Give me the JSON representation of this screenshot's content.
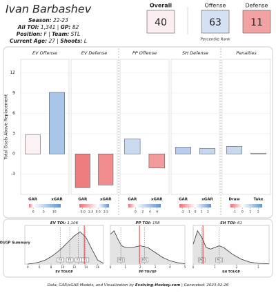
{
  "header": {
    "name": "Ivan Barbashev",
    "info": [
      [
        {
          "label": "Season:",
          "value": "22-23"
        }
      ],
      [
        {
          "label": "All TOI:",
          "value": "1,341"
        },
        {
          "label": "GP:",
          "value": "82"
        }
      ],
      [
        {
          "label": "Position:",
          "value": "F"
        },
        {
          "label": "Team:",
          "value": "STL"
        }
      ],
      [
        {
          "label": "Current Age:",
          "value": "27"
        },
        {
          "label": "Shoots:",
          "value": "L"
        }
      ]
    ],
    "percentiles": [
      {
        "label": "Overall",
        "value": 40,
        "color": "#fbeef0"
      },
      {
        "label": "Offense",
        "value": 63,
        "color": "#d3e1f2"
      },
      {
        "label": "Defense",
        "value": 11,
        "color": "#f3a2a4"
      }
    ],
    "percentile_note": "Percentile Rank"
  },
  "chart_data": {
    "type": "bar",
    "y_label": "Total Goals Above Replacement",
    "ylim": [
      -6,
      14
    ],
    "yticks": [
      -3,
      0,
      3,
      6,
      9,
      12
    ],
    "grid": true,
    "panels": [
      {
        "title": "EV Offense",
        "categories": [
          "GAR",
          "xGAR"
        ],
        "values": [
          2.8,
          9.1
        ],
        "colors": [
          "#fdf2f3",
          "#a9c5e7"
        ],
        "colorbar": {
          "lim": [
            -2,
            13
          ],
          "ticks": [
            0,
            5,
            10
          ]
        }
      },
      {
        "title": "EV Defense",
        "categories": [
          "GAR",
          "xGAR"
        ],
        "values": [
          -5.0,
          -4.6
        ],
        "colors": [
          "#ee7d80",
          "#f08b8e"
        ],
        "colorbar": {
          "lim": [
            -6,
            3.5
          ],
          "ticks": [
            {
              "value": -5,
              "label": "-5.0"
            },
            -2.5,
            {
              "value": 0,
              "label": "0.0"
            },
            2.5
          ]
        }
      },
      {
        "title": "PP Offense",
        "categories": [
          "GAR",
          "xGAR"
        ],
        "values": [
          2.2,
          -2.1
        ],
        "colors": [
          "#c9daf0",
          "#f29a9c"
        ],
        "colorbar": {
          "lim": [
            -2,
            7
          ],
          "ticks": [
            0,
            2,
            4,
            6
          ]
        }
      },
      {
        "title": "SH Defense",
        "categories": [
          "GAR",
          "xGAR"
        ],
        "values": [
          1.0,
          0.8
        ],
        "colors": [
          "#b6cdeb",
          "#c4d7ef"
        ],
        "colorbar": {
          "lim": [
            -2.5,
            2.5
          ],
          "ticks": [
            -2,
            -1,
            0,
            1,
            2
          ]
        }
      },
      {
        "title": "Penalties",
        "categories": [
          "Draw",
          "Take"
        ],
        "values": [
          1.1,
          0.1
        ],
        "colors": [
          "#c8d9ef",
          "#f3f3f3"
        ],
        "colorbar": {
          "lim": [
            -1.5,
            2.5
          ],
          "ticks": [
            -1,
            0,
            1,
            2
          ]
        }
      }
    ]
  },
  "toi_chart": {
    "type": "area",
    "y_label": "TOI/GP Summary",
    "ylim": [
      0,
      1.1
    ],
    "panels": [
      {
        "title": "EV TOI:",
        "toi": "1,106",
        "x_label": "EV TOI/GP",
        "xlim": [
          3.5,
          17
        ],
        "xticks": [
          4,
          6,
          8,
          10,
          12,
          14,
          16
        ],
        "x": [
          4,
          5,
          6,
          7,
          8,
          9,
          10,
          11,
          12,
          13,
          14,
          15,
          16,
          17
        ],
        "density": [
          0,
          0.02,
          0.06,
          0.12,
          0.22,
          0.35,
          0.5,
          0.68,
          0.85,
          0.97,
          0.8,
          0.45,
          0.12,
          0.02
        ],
        "tiers": [
          {
            "label": "F4",
            "value": 9.6
          },
          {
            "label": "F3",
            "value": 11.2
          },
          {
            "label": "F2",
            "value": 12.7
          },
          {
            "label": "F1",
            "value": 13.9
          }
        ],
        "player": 13.7
      },
      {
        "title": "PP TOI:",
        "toi": "158",
        "x_label": "PP TOI/GP",
        "xlim": [
          0,
          5
        ],
        "xticks": [
          0,
          1,
          2,
          3,
          4,
          5
        ],
        "x": [
          0,
          0.25,
          0.5,
          0.75,
          1,
          1.5,
          2,
          2.5,
          3,
          3.5,
          4,
          4.5,
          5
        ],
        "density": [
          0.9,
          1,
          0.75,
          0.55,
          0.5,
          0.5,
          0.55,
          0.5,
          0.35,
          0.2,
          0.1,
          0.04,
          0.01
        ],
        "tiers": [
          {
            "label": "PP2",
            "value": 0.7
          },
          {
            "label": "PP1",
            "value": 2.3
          }
        ],
        "player": 1.95
      },
      {
        "title": "SH TOI:",
        "toi": "61",
        "x_label": "SH TOI/GP",
        "xlim": [
          0,
          3.5
        ],
        "xticks": [
          0,
          1,
          2,
          3
        ],
        "x": [
          0,
          0.2,
          0.4,
          0.6,
          0.8,
          1,
          1.2,
          1.4,
          1.8,
          2.2,
          2.6,
          3,
          3.5
        ],
        "density": [
          0.6,
          1,
          0.8,
          0.5,
          0.45,
          0.5,
          0.55,
          0.5,
          0.3,
          0.15,
          0.06,
          0.02,
          0.01
        ],
        "tiers": [
          {
            "label": "PK2",
            "value": 0.4
          },
          {
            "label": "PK1",
            "value": 1.2
          }
        ],
        "player": 0.45
      }
    ]
  },
  "footer": {
    "prefix": "Data, GAR/xGAR Models, and Visualization by",
    "site": "Evolving-Hockey.com",
    "generated": "| Generated: 2023-02-26"
  }
}
